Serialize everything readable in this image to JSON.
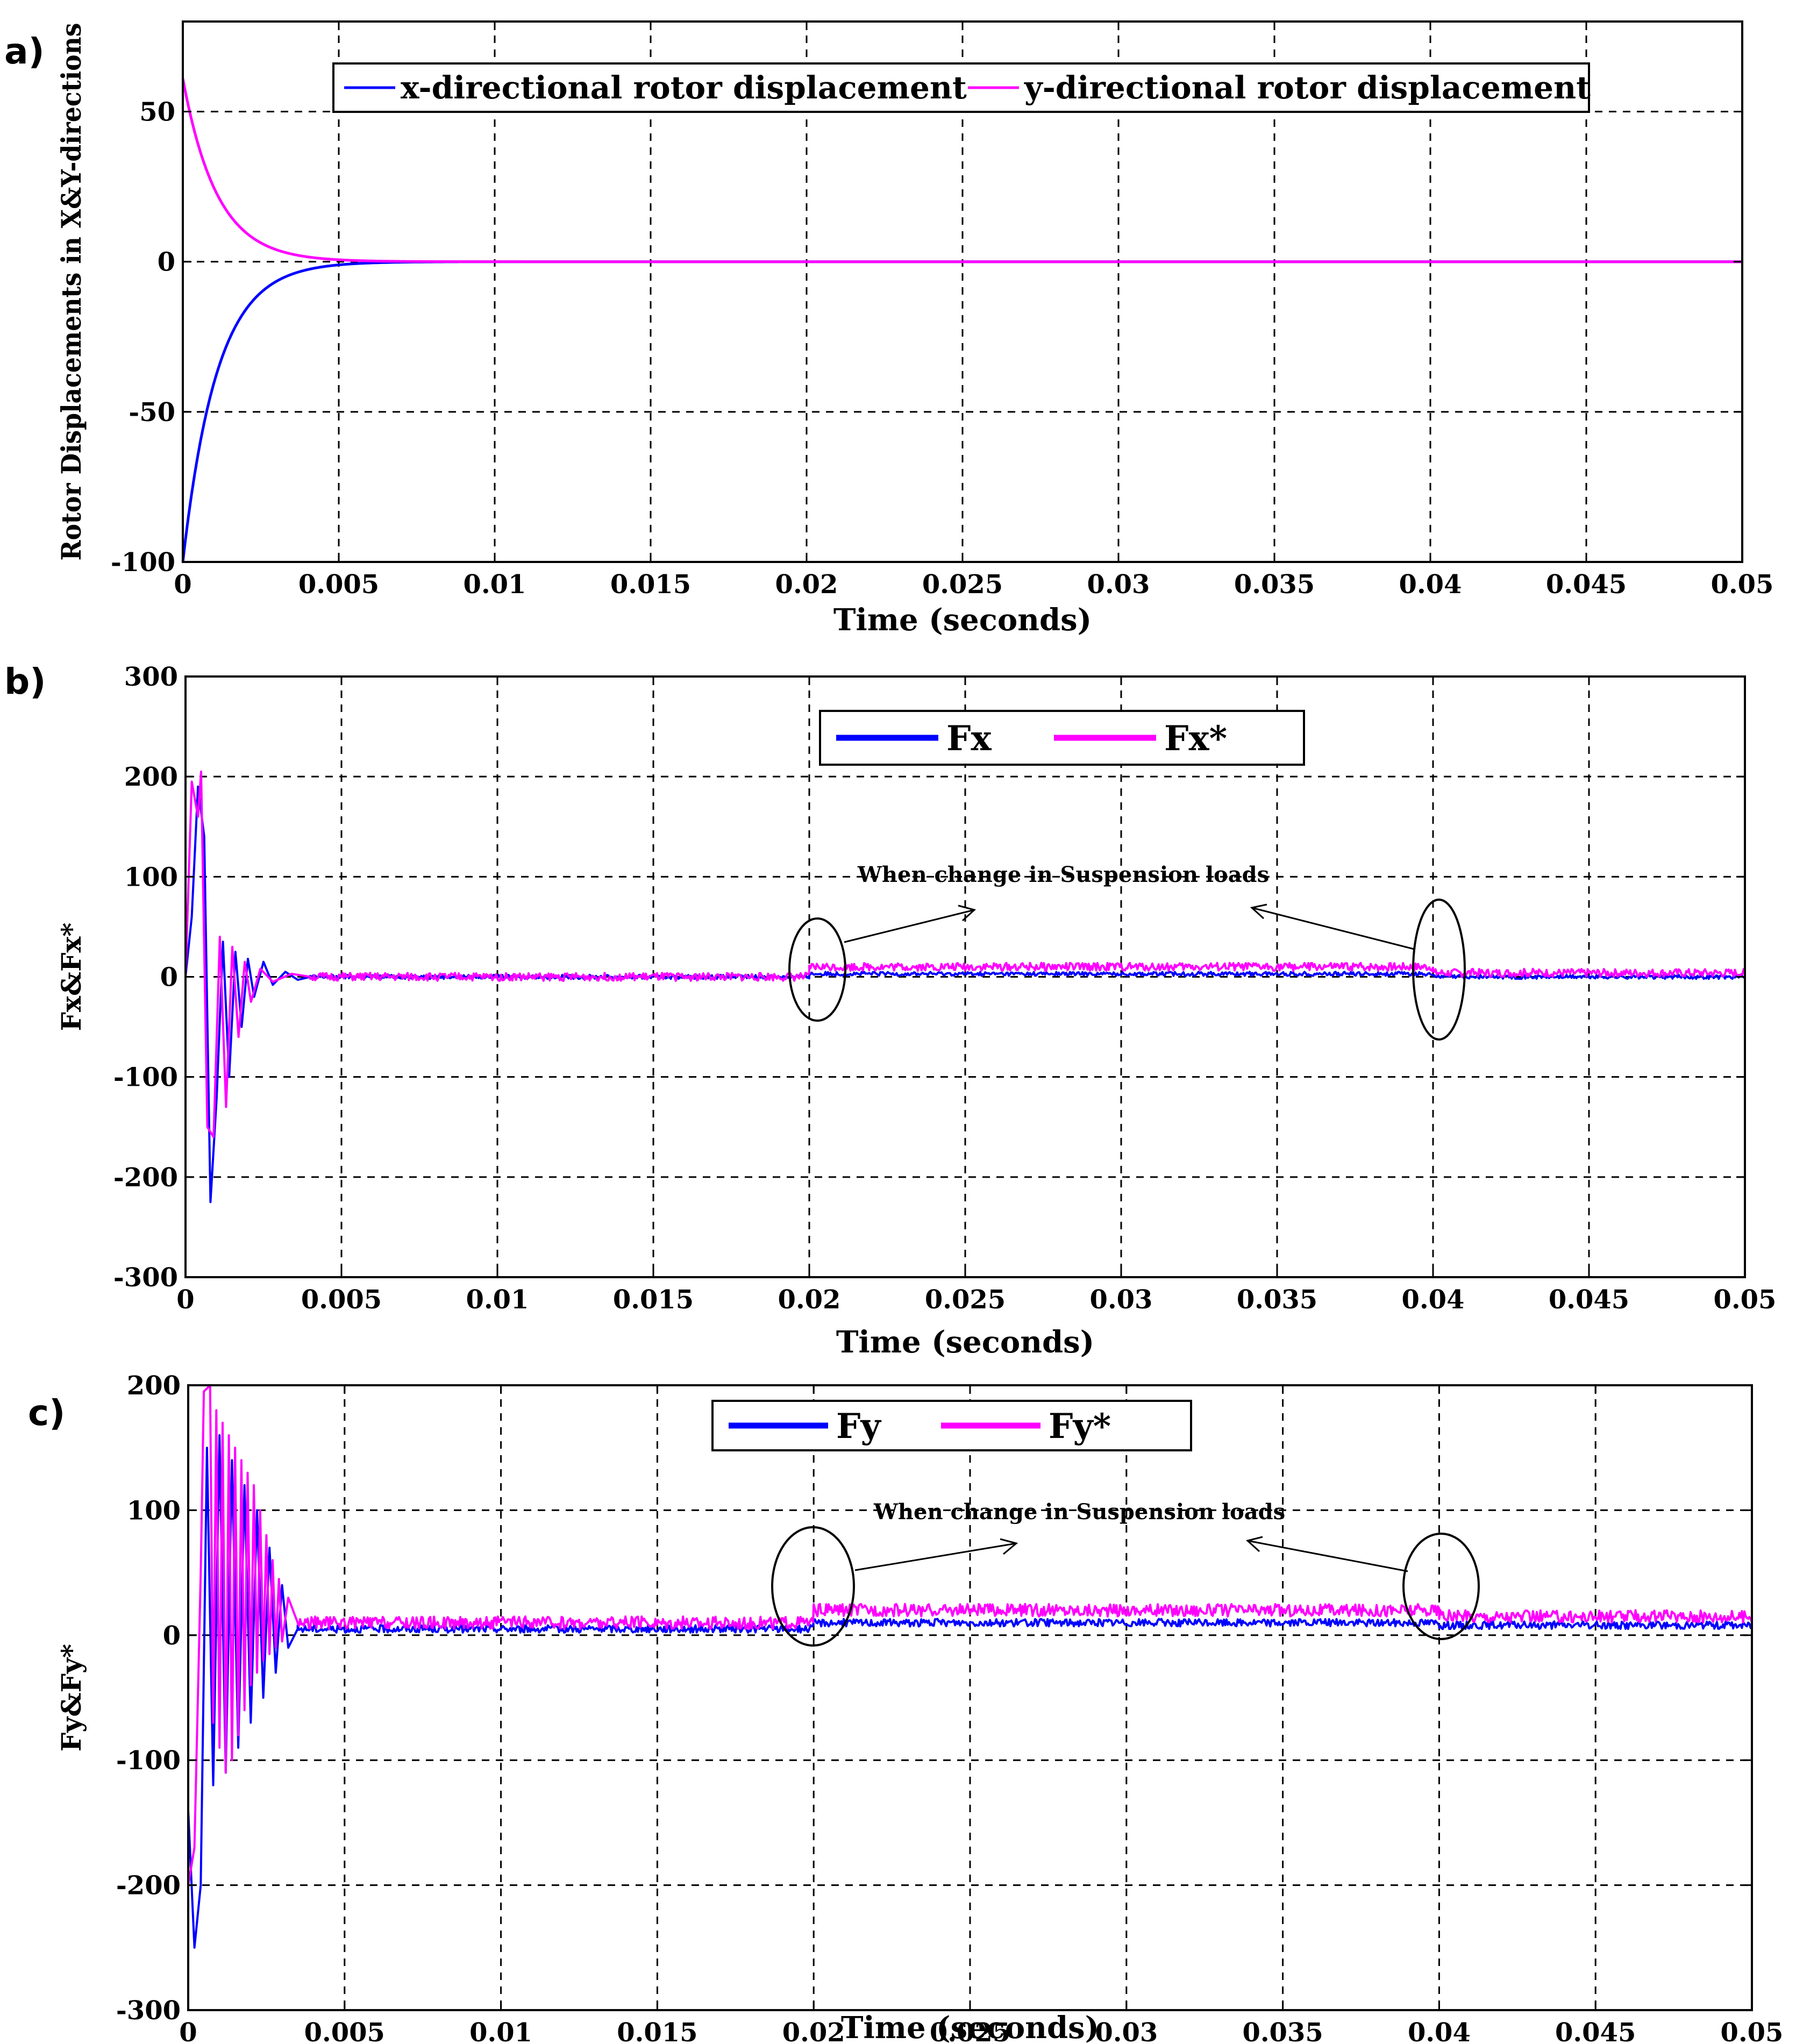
{
  "chart_data": [
    {
      "type": "line",
      "panel_label": "a)",
      "xlabel": "Time (seconds)",
      "ylabel": "Rotor Displacements in X&Y-directions",
      "xlim": [
        0,
        0.05
      ],
      "ylim": [
        -100,
        80
      ],
      "xticks": [
        0,
        0.005,
        0.01,
        0.015,
        0.02,
        0.025,
        0.03,
        0.035,
        0.04,
        0.045,
        0.05
      ],
      "xtick_labels": [
        "0",
        "0.005",
        "0.01",
        "0.015",
        "0.02",
        "0.025",
        "0.03",
        "0.035",
        "0.04",
        "0.045",
        "0.05"
      ],
      "yticks": [
        -100,
        -50,
        0,
        50
      ],
      "ytick_labels": [
        "-100",
        "-50",
        "0",
        "50"
      ],
      "grid": true,
      "legend_position": "top",
      "series": [
        {
          "name": "x-directional rotor displacement",
          "color": "#0000ff",
          "model": {
            "kind": "exp",
            "start": -100,
            "final": 0,
            "tau": 0.0011
          }
        },
        {
          "name": "y-directional rotor displacement",
          "color": "#ff00ff",
          "model": {
            "kind": "exp",
            "start": 61,
            "final": 0,
            "tau": 0.0011
          }
        }
      ]
    },
    {
      "type": "line",
      "panel_label": "b)",
      "xlabel": "Time (seconds)",
      "ylabel": "Fx&Fx*",
      "xlim": [
        0,
        0.05
      ],
      "ylim": [
        -300,
        300
      ],
      "xticks": [
        0,
        0.005,
        0.01,
        0.015,
        0.02,
        0.025,
        0.03,
        0.035,
        0.04,
        0.045,
        0.05
      ],
      "xtick_labels": [
        "0",
        "0.005",
        "0.01",
        "0.015",
        "0.02",
        "0.025",
        "0.03",
        "0.035",
        "0.04",
        "0.045",
        "0.05"
      ],
      "yticks": [
        -300,
        -200,
        -100,
        0,
        100,
        200,
        300
      ],
      "ytick_labels": [
        "-300",
        "-200",
        "-100",
        "0",
        "100",
        "200",
        "300"
      ],
      "grid": true,
      "legend_position": "top-center",
      "annotation": "When change in Suspension loads",
      "series": [
        {
          "name": "Fx",
          "color": "#0000ff",
          "transient": [
            [
              0,
              0
            ],
            [
              0.0002,
              60
            ],
            [
              0.0004,
              190
            ],
            [
              0.0006,
              140
            ],
            [
              0.0008,
              -225
            ],
            [
              0.001,
              -120
            ],
            [
              0.0012,
              35
            ],
            [
              0.0014,
              -100
            ],
            [
              0.0016,
              25
            ],
            [
              0.0018,
              -50
            ],
            [
              0.002,
              18
            ],
            [
              0.0022,
              -20
            ],
            [
              0.0025,
              15
            ],
            [
              0.0028,
              -8
            ],
            [
              0.0032,
              5
            ],
            [
              0.0036,
              -3
            ],
            [
              0.004,
              0
            ]
          ],
          "steady": [
            {
              "from": 0.004,
              "to": 0.02,
              "level": 0
            },
            {
              "from": 0.02,
              "to": 0.04,
              "level": 3
            },
            {
              "from": 0.04,
              "to": 0.05,
              "level": 0
            }
          ],
          "ripple": 2
        },
        {
          "name": "Fx*",
          "color": "#ff00ff",
          "transient": [
            [
              0,
              0
            ],
            [
              0.0002,
              195
            ],
            [
              0.0004,
              160
            ],
            [
              0.0005,
              205
            ],
            [
              0.0007,
              -150
            ],
            [
              0.0009,
              -160
            ],
            [
              0.0011,
              40
            ],
            [
              0.0013,
              -130
            ],
            [
              0.0015,
              30
            ],
            [
              0.0017,
              -60
            ],
            [
              0.0019,
              15
            ],
            [
              0.0021,
              -25
            ],
            [
              0.0024,
              8
            ],
            [
              0.0028,
              -5
            ],
            [
              0.0034,
              3
            ],
            [
              0.004,
              0
            ]
          ],
          "steady": [
            {
              "from": 0.004,
              "to": 0.02,
              "level": 0
            },
            {
              "from": 0.02,
              "to": 0.04,
              "level": 10
            },
            {
              "from": 0.04,
              "to": 0.05,
              "level": 4
            }
          ],
          "ripple": 4
        }
      ]
    },
    {
      "type": "line",
      "panel_label": "c)",
      "xlabel": "Time (seconds)",
      "ylabel": "Fy&Fy*",
      "xlim": [
        0,
        0.05
      ],
      "ylim": [
        -300,
        200
      ],
      "xticks": [
        0,
        0.005,
        0.01,
        0.015,
        0.02,
        0.025,
        0.03,
        0.035,
        0.04,
        0.045,
        0.05
      ],
      "xtick_labels": [
        "0",
        "0.005",
        "0.01",
        "0.015",
        "0.02",
        "0.025",
        "0.03",
        "0.035",
        "0.04",
        "0.045",
        "0.05"
      ],
      "yticks": [
        -300,
        -200,
        -100,
        0,
        100,
        200
      ],
      "ytick_labels": [
        "-300",
        "-200",
        "-100",
        "0",
        "100",
        "200"
      ],
      "grid": true,
      "legend_position": "top-center",
      "annotation": "When change in Suspension loads",
      "series": [
        {
          "name": "Fy",
          "color": "#0000ff",
          "transient": [
            [
              0,
              -140
            ],
            [
              0.0002,
              -250
            ],
            [
              0.0004,
              -200
            ],
            [
              0.0006,
              150
            ],
            [
              0.0008,
              -120
            ],
            [
              0.001,
              160
            ],
            [
              0.0012,
              -110
            ],
            [
              0.0014,
              140
            ],
            [
              0.0016,
              -90
            ],
            [
              0.0018,
              120
            ],
            [
              0.002,
              -70
            ],
            [
              0.0022,
              100
            ],
            [
              0.0024,
              -50
            ],
            [
              0.0026,
              70
            ],
            [
              0.0028,
              -30
            ],
            [
              0.003,
              40
            ],
            [
              0.0032,
              -10
            ],
            [
              0.0035,
              5
            ]
          ],
          "steady": [
            {
              "from": 0.0035,
              "to": 0.02,
              "level": 5
            },
            {
              "from": 0.02,
              "to": 0.04,
              "level": 10
            },
            {
              "from": 0.04,
              "to": 0.05,
              "level": 8
            }
          ],
          "ripple": 3
        },
        {
          "name": "Fy*",
          "color": "#ff00ff",
          "transient": [
            [
              0,
              -200
            ],
            [
              0.0002,
              -170
            ],
            [
              0.0004,
              50
            ],
            [
              0.0005,
              195
            ],
            [
              0.0007,
              200
            ],
            [
              0.0008,
              -70
            ],
            [
              0.0009,
              180
            ],
            [
              0.001,
              -90
            ],
            [
              0.0011,
              170
            ],
            [
              0.0012,
              -110
            ],
            [
              0.0013,
              160
            ],
            [
              0.0014,
              -100
            ],
            [
              0.0015,
              150
            ],
            [
              0.0016,
              -80
            ],
            [
              0.0017,
              140
            ],
            [
              0.0018,
              -60
            ],
            [
              0.0019,
              130
            ],
            [
              0.002,
              -40
            ],
            [
              0.0021,
              120
            ],
            [
              0.0022,
              -30
            ],
            [
              0.0023,
              100
            ],
            [
              0.0024,
              -20
            ],
            [
              0.0025,
              80
            ],
            [
              0.0026,
              -15
            ],
            [
              0.0027,
              60
            ],
            [
              0.0028,
              -10
            ],
            [
              0.0029,
              45
            ],
            [
              0.003,
              -5
            ],
            [
              0.0032,
              30
            ],
            [
              0.0035,
              10
            ]
          ],
          "steady": [
            {
              "from": 0.0035,
              "to": 0.02,
              "level": 10
            },
            {
              "from": 0.02,
              "to": 0.04,
              "level": 20
            },
            {
              "from": 0.04,
              "to": 0.05,
              "level": 15
            }
          ],
          "ripple": 5
        }
      ]
    }
  ]
}
